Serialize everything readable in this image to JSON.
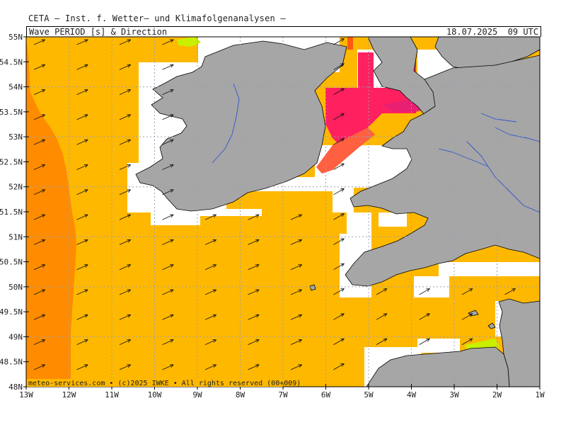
{
  "header": {
    "provider_line": "CETA — Inst. f. Wetter— und Klimafolgenanalysen —",
    "title": "Wave_PERIOD_[s]_&_Direction",
    "timestamp": "18.07.2025  09 UTC"
  },
  "map": {
    "lon_range": [
      -13,
      -1
    ],
    "lat_range": [
      48,
      55
    ],
    "lat_labels": [
      "55N",
      "54.5N",
      "54N",
      "53.5N",
      "53N",
      "52.5N",
      "52N",
      "51.5N",
      "51N",
      "50.5N",
      "50N",
      "49.5N",
      "49N",
      "48.5N",
      "48N"
    ],
    "lon_labels": [
      "13W",
      "12W",
      "11W",
      "10W",
      "9W",
      "8W",
      "7W",
      "6W",
      "5W",
      "4W",
      "3W",
      "2W",
      "1W"
    ],
    "credit": "meteo-services.com  •  (c)2025  IWKE  •  All rights reserved  (00+009)",
    "colors": {
      "sea_main": "#FFB800",
      "sea_atlantic": "#FF8C00",
      "irish_sea": "#FF2060",
      "land": "#A6A6A6",
      "masked": "#FFFFFF",
      "rivers": "#3355CC",
      "grid": "#9aa0b0"
    }
  }
}
